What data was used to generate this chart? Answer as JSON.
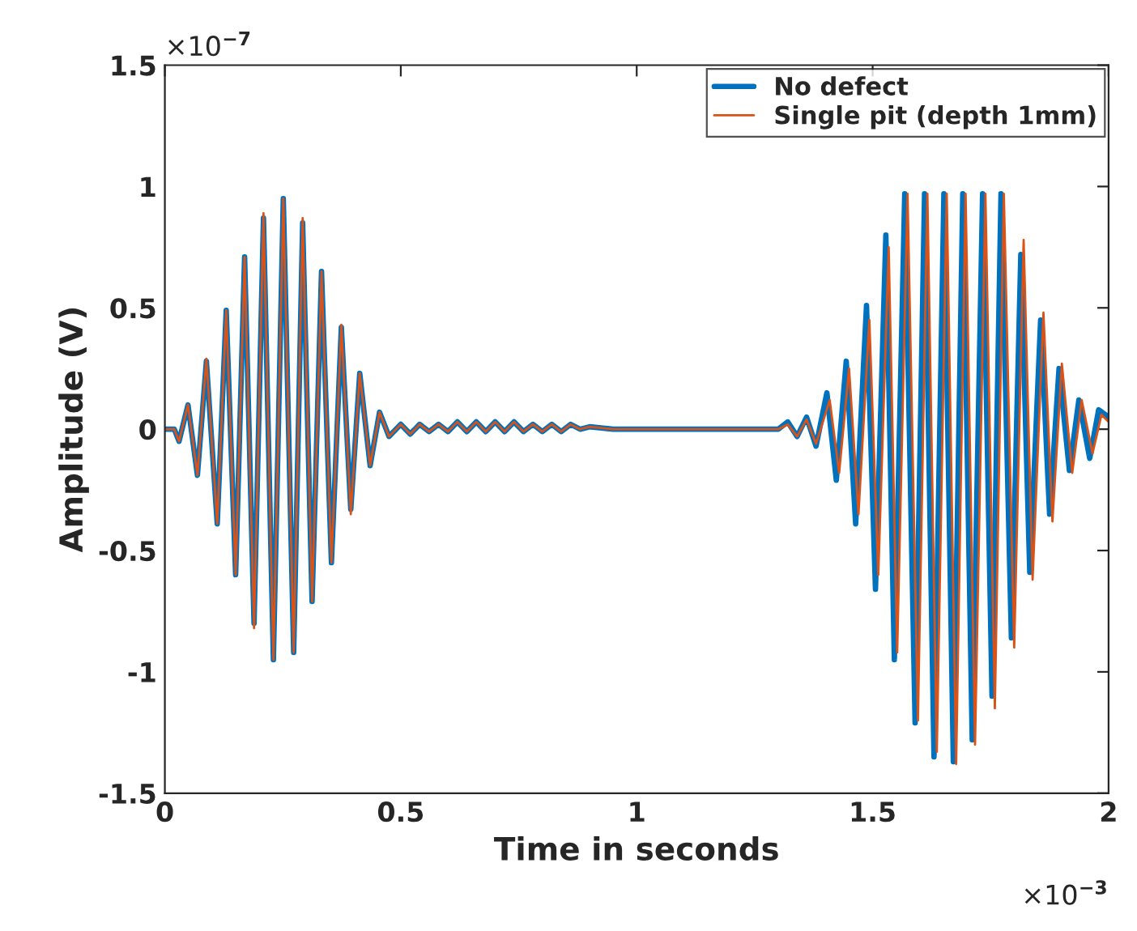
{
  "chart_data": {
    "type": "line",
    "xlabel": "Time in seconds",
    "ylabel": "Amplitude (V)",
    "xlim": [
      0,
      2
    ],
    "ylim": [
      -1.5,
      1.5
    ],
    "xticks": [
      0,
      0.5,
      1,
      1.5,
      2
    ],
    "yticks": [
      -1.5,
      -1,
      -0.5,
      0,
      0.5,
      1,
      1.5
    ],
    "annotations": [
      "×10$^{−7}$",
      "×10$^{−3}$"
    ],
    "legend": "top right",
    "grid": false,
    "series": [
      {
        "name": "No defect",
        "color": "#0072bd",
        "x": [
          0,
          0.02,
          0.03,
          0.049,
          0.069,
          0.088,
          0.111,
          0.13,
          0.15,
          0.169,
          0.189,
          0.209,
          0.23,
          0.251,
          0.273,
          0.292,
          0.312,
          0.332,
          0.353,
          0.374,
          0.394,
          0.413,
          0.435,
          0.455,
          0.475,
          0.5,
          0.52,
          0.54,
          0.56,
          0.58,
          0.6,
          0.62,
          0.64,
          0.66,
          0.68,
          0.7,
          0.72,
          0.74,
          0.76,
          0.78,
          0.8,
          0.82,
          0.84,
          0.86,
          0.88,
          0.9,
          0.95,
          1.0,
          1.1,
          1.2,
          1.3,
          1.32,
          1.34,
          1.36,
          1.38,
          1.403,
          1.423,
          1.444,
          1.464,
          1.487,
          1.506,
          1.528,
          1.546,
          1.568,
          1.59,
          1.61,
          1.63,
          1.651,
          1.671,
          1.691,
          1.711,
          1.733,
          1.753,
          1.772,
          1.794,
          1.814,
          1.833,
          1.856,
          1.875,
          1.895,
          1.917,
          1.937,
          1.96,
          1.979,
          2.0
        ],
        "values": [
          0,
          0,
          -0.05,
          0.1,
          -0.19,
          0.28,
          -0.39,
          0.49,
          -0.6,
          0.71,
          -0.8,
          0.87,
          -0.95,
          0.95,
          -0.92,
          0.85,
          -0.71,
          0.65,
          -0.55,
          0.42,
          -0.33,
          0.23,
          -0.15,
          0.07,
          -0.03,
          0.02,
          -0.02,
          0.02,
          -0.01,
          0.02,
          -0.01,
          0.03,
          -0.01,
          0.03,
          -0.01,
          0.03,
          -0.01,
          0.03,
          -0.01,
          0.02,
          -0.01,
          0.02,
          -0.01,
          0.02,
          0,
          0.01,
          0,
          0,
          0,
          0,
          0,
          0.03,
          -0.03,
          0.05,
          -0.07,
          0.15,
          -0.21,
          0.28,
          -0.39,
          0.51,
          -0.66,
          0.8,
          -0.95,
          0.97,
          -1.21,
          0.97,
          -1.35,
          0.97,
          -1.37,
          0.97,
          -1.28,
          0.97,
          -1.1,
          0.97,
          -0.86,
          0.72,
          -0.59,
          0.45,
          -0.35,
          0.25,
          -0.17,
          0.12,
          -0.12,
          0.08,
          0.05
        ]
      },
      {
        "name": "Single pit (depth 1mm)",
        "color": "#d95319",
        "x": [
          0,
          0.02,
          0.03,
          0.049,
          0.069,
          0.088,
          0.111,
          0.13,
          0.15,
          0.169,
          0.189,
          0.209,
          0.23,
          0.251,
          0.273,
          0.292,
          0.312,
          0.332,
          0.353,
          0.374,
          0.394,
          0.413,
          0.435,
          0.455,
          0.475,
          0.5,
          0.52,
          0.54,
          0.56,
          0.58,
          0.6,
          0.62,
          0.64,
          0.66,
          0.68,
          0.7,
          0.72,
          0.74,
          0.76,
          0.78,
          0.8,
          0.82,
          0.84,
          0.86,
          0.88,
          0.9,
          0.95,
          1.0,
          1.1,
          1.2,
          1.3,
          1.32,
          1.34,
          1.36,
          1.38,
          1.409,
          1.429,
          1.45,
          1.47,
          1.493,
          1.512,
          1.534,
          1.552,
          1.574,
          1.596,
          1.616,
          1.636,
          1.657,
          1.677,
          1.697,
          1.717,
          1.739,
          1.759,
          1.778,
          1.8,
          1.82,
          1.839,
          1.862,
          1.881,
          1.901,
          1.923,
          1.943,
          1.966,
          1.985,
          2.0
        ],
        "values": [
          0,
          0,
          -0.05,
          0.1,
          -0.19,
          0.29,
          -0.39,
          0.49,
          -0.6,
          0.71,
          -0.82,
          0.89,
          -0.95,
          0.95,
          -0.92,
          0.87,
          -0.71,
          0.65,
          -0.55,
          0.43,
          -0.35,
          0.23,
          -0.15,
          0.07,
          -0.03,
          0.02,
          -0.02,
          0.02,
          -0.01,
          0.02,
          -0.01,
          0.03,
          -0.01,
          0.03,
          -0.01,
          0.03,
          -0.01,
          0.03,
          -0.01,
          0.02,
          -0.01,
          0.02,
          -0.01,
          0.02,
          0,
          0.01,
          0,
          0,
          0,
          0,
          0,
          0.02,
          -0.03,
          0.04,
          -0.06,
          0.12,
          -0.18,
          0.25,
          -0.35,
          0.45,
          -0.6,
          0.75,
          -0.92,
          0.97,
          -1.2,
          0.97,
          -1.33,
          0.97,
          -1.38,
          0.97,
          -1.3,
          0.97,
          -1.15,
          0.97,
          -0.9,
          0.78,
          -0.62,
          0.48,
          -0.38,
          0.27,
          -0.18,
          0.12,
          -0.1,
          0.06,
          0.03
        ]
      }
    ]
  }
}
